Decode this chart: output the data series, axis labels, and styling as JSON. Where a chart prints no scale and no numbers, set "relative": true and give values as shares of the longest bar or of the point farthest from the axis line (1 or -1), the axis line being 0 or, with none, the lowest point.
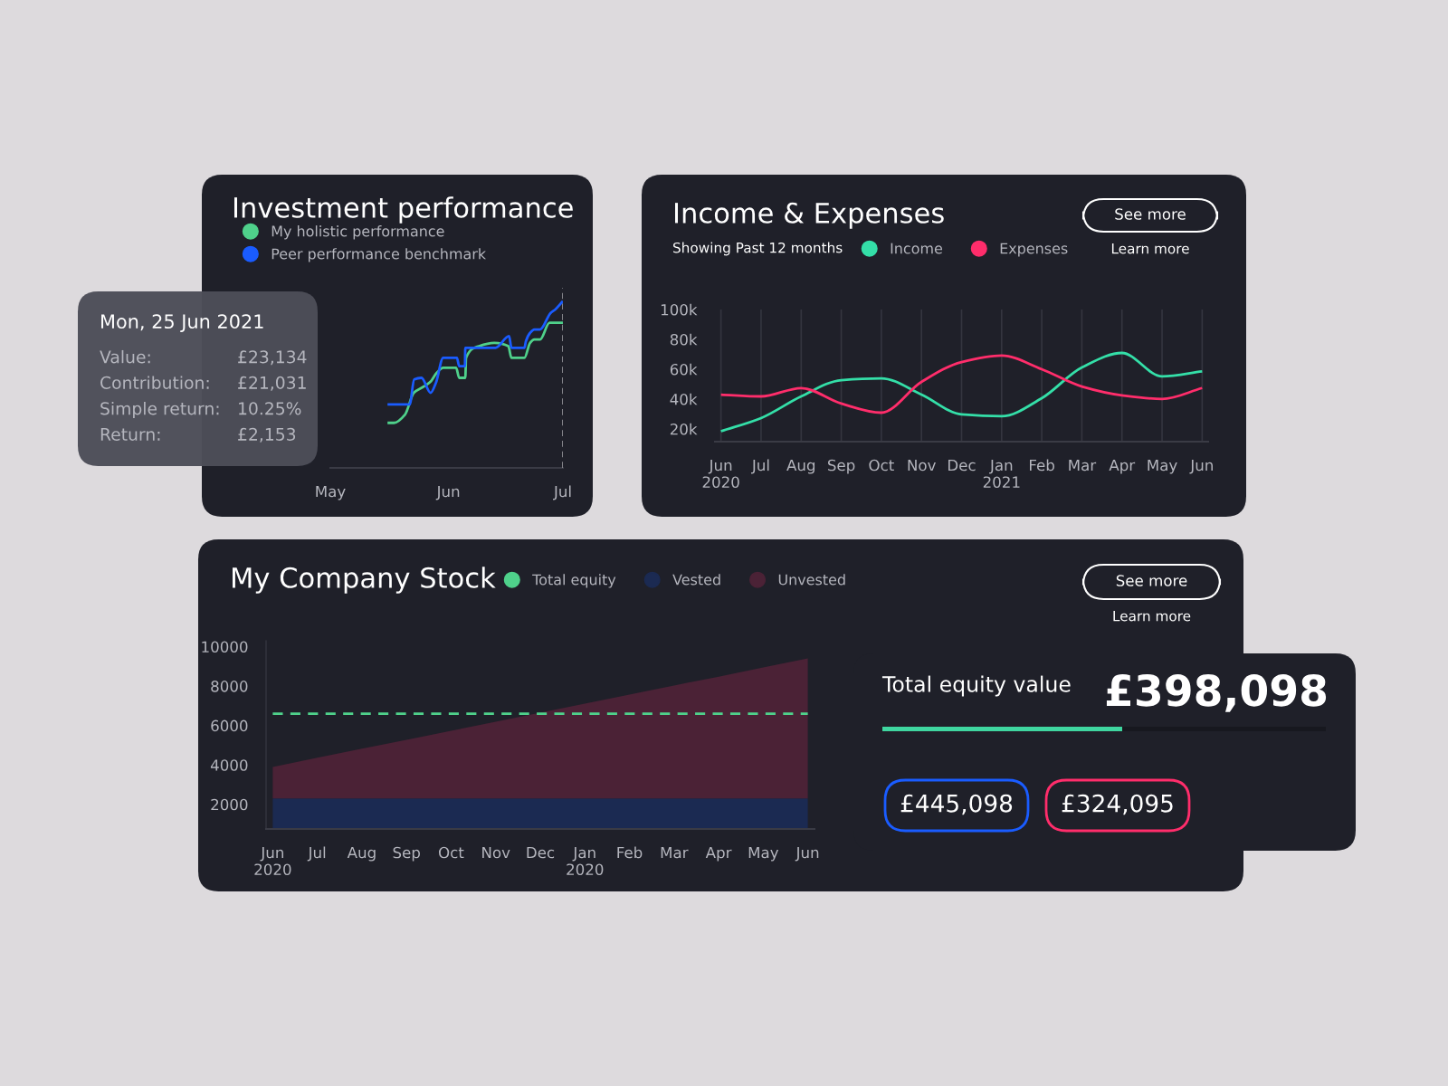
{
  "chart_data": [
    {
      "type": "line",
      "title": "Investment performance",
      "relative": true,
      "series": [
        {
          "name": "My holistic performance",
          "color": "#4fd18b",
          "x": [
            "2021-05-16T00:00",
            "2021-05-17T16:48",
            "2021-05-20T14:24",
            "2021-05-22T21:36",
            "2021-05-25T16:48",
            "2021-05-27T09:36",
            "2021-05-28T21:36",
            "2021-05-30T14:24",
            "2021-06-03T00:00",
            "2021-06-03T19:12",
            "2021-06-05T09:36",
            "2021-06-05T14:24",
            "2021-06-09T00:00",
            "2021-06-13T00:00",
            "2021-06-16T16:48",
            "2021-06-17T12:00",
            "2021-06-20T21:36",
            "2021-06-22T09:36",
            "2021-06-23T12:00",
            "2021-06-25T00:00",
            "2021-06-27T12:00",
            "2021-07-01T00:00"
          ],
          "values": [
            0.27,
            0.27,
            0.32,
            0.45,
            0.49,
            0.52,
            0.57,
            0.6,
            0.6,
            0.54,
            0.54,
            0.66,
            0.73,
            0.75,
            0.73,
            0.66,
            0.66,
            0.75,
            0.77,
            0.77,
            0.87,
            0.87
          ]
        },
        {
          "name": "Peer performance benchmark",
          "color": "#1a5cff",
          "x": [
            "2021-05-16T00:00",
            "2021-05-21T19:12",
            "2021-05-23T00:00",
            "2021-05-24T21:36",
            "2021-05-27T07:12",
            "2021-05-28T16:48",
            "2021-05-30T14:24",
            "2021-06-03T04:48",
            "2021-06-03T19:12",
            "2021-06-05T07:12",
            "2021-06-05T09:36",
            "2021-06-13T07:12",
            "2021-06-16T21:36",
            "2021-06-17T12:00",
            "2021-06-20T21:36",
            "2021-06-21T07:12",
            "2021-06-22T09:36",
            "2021-06-23T12:00",
            "2021-06-25T00:00",
            "2021-06-27T19:12",
            "2021-06-29T00:00",
            "2021-07-01T00:00"
          ],
          "values": [
            0.38,
            0.38,
            0.53,
            0.54,
            0.45,
            0.51,
            0.66,
            0.66,
            0.61,
            0.61,
            0.72,
            0.72,
            0.79,
            0.72,
            0.72,
            0.76,
            0.81,
            0.83,
            0.83,
            0.93,
            0.95,
            1
          ]
        }
      ],
      "xlim": [
        "2021-05-01",
        "2021-07-01"
      ],
      "xticks": [
        {
          "value": "2021-05-01",
          "label": "May"
        },
        {
          "value": "2021-06-01",
          "label": "Jun"
        },
        {
          "value": "2021-07-01",
          "label": "Jul"
        }
      ],
      "ref_lines": [
        {
          "axis": "x",
          "value": "2021-07-01",
          "line_style": "dashed",
          "color": "#9a9aa0"
        }
      ],
      "legend": "top left",
      "annotations": [
        "Mon, 25 Jun 2021",
        "Value:",
        "£23,134",
        "Contribution:",
        "£21,031",
        "Simple return:",
        "10.25%",
        "Return:",
        "£2,153"
      ]
    },
    {
      "type": "line",
      "title": "Income & Expenses",
      "subtitle": "Showing Past 12 months",
      "categories": [
        "Jun\n2020",
        "Jul",
        "Aug",
        "Sep",
        "Oct",
        "Nov",
        "Dec",
        "Jan\n2021",
        "Feb",
        "Mar",
        "Apr",
        "May",
        "Jun"
      ],
      "series": [
        {
          "name": "Income",
          "color": "#34dfa8",
          "values": [
            18500,
            27300,
            41800,
            52700,
            53900,
            43000,
            29700,
            28500,
            40600,
            61200,
            70900,
            55200,
            58500
          ]
        },
        {
          "name": "Expenses",
          "color": "#ff2d6b",
          "values": [
            43000,
            41800,
            47400,
            37000,
            30900,
            51500,
            64800,
            69200,
            60000,
            48400,
            42500,
            40100,
            47400
          ]
        }
      ],
      "ylim": [
        11500,
        100000
      ],
      "yticks": [
        {
          "value": 20000,
          "label": "20k"
        },
        {
          "value": 40000,
          "label": "40k"
        },
        {
          "value": 60000,
          "label": "60k"
        },
        {
          "value": 80000,
          "label": "80k"
        },
        {
          "value": 100000,
          "label": "100k"
        }
      ],
      "grid": "x",
      "legend": "top",
      "annotations": [
        "See more",
        "Learn more"
      ]
    },
    {
      "type": "area",
      "stacked": true,
      "title": "My Company Stock",
      "categories": [
        "Jun\n2020",
        "Jul",
        "Aug",
        "Sep",
        "Oct",
        "Nov",
        "Dec",
        "Jan\n2020",
        "Feb",
        "Mar",
        "Apr",
        "May",
        "Jun"
      ],
      "series": [
        {
          "name": "Total equity",
          "type": "line",
          "line_style": "dashed",
          "color": "#4fd18b",
          "values": [
            6600,
            6600,
            6600,
            6600,
            6600,
            6600,
            6600,
            6600,
            6600,
            6600,
            6600,
            6600,
            6600
          ]
        },
        {
          "name": "Vested",
          "color": "#1b2a52",
          "values": [
            2300,
            2300,
            2300,
            2300,
            2300,
            2300,
            2300,
            2300,
            2300,
            2300,
            2300,
            2300,
            2300
          ]
        },
        {
          "name": "Unvested",
          "color": "#4b2236",
          "values": [
            1600,
            2060,
            2520,
            2970,
            3430,
            3890,
            4350,
            4810,
            5270,
            5730,
            6180,
            6640,
            7100
          ]
        }
      ],
      "ylim": [
        750,
        10300
      ],
      "yticks": [
        2000,
        4000,
        6000,
        8000,
        10000
      ],
      "legend": "top",
      "annotations": [
        "See more",
        "Learn more"
      ]
    },
    {
      "type": "other",
      "title": "Total equity value",
      "annotations": [
        "£398,098",
        "£445,098",
        "£324,095"
      ]
    }
  ]
}
